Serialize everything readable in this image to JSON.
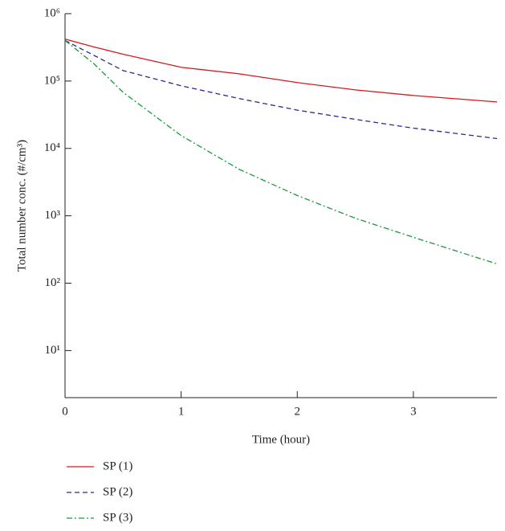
{
  "chart_data": {
    "type": "line",
    "x_label": "Time (hour)",
    "y_label": "Total number conc. (#/cm³)",
    "xlim": [
      0,
      3.72
    ],
    "xticks": [
      0,
      1,
      2,
      3
    ],
    "ylim": [
      2,
      1000000
    ],
    "log_y": true,
    "yticks": [
      {
        "value": 10,
        "label": "10¹"
      },
      {
        "value": 100,
        "label": "10²"
      },
      {
        "value": 1000,
        "label": "10³"
      },
      {
        "value": 10000,
        "label": "10⁴"
      },
      {
        "value": 100000,
        "label": "10⁵"
      },
      {
        "value": 1000000,
        "label": "10⁶"
      }
    ],
    "x": [
      0,
      0.25,
      0.5,
      1,
      1.5,
      2,
      2.5,
      3,
      3.72
    ],
    "series": [
      {
        "name": "SP (1)",
        "color": "#d7191c",
        "dash": "none",
        "values": [
          420000,
          320000,
          250000,
          160000,
          128000,
          95000,
          74000,
          61000,
          49000
        ]
      },
      {
        "name": "SP (2)",
        "color": "#2b2b8a",
        "dash": "6,4",
        "values": [
          400000,
          240000,
          143000,
          85000,
          55000,
          37000,
          27000,
          20000,
          14000
        ]
      },
      {
        "name": "SP (3)",
        "color": "#1a9a3a",
        "dash": "7,3,2,3",
        "values": [
          400000,
          180000,
          68000,
          15500,
          4900,
          2000,
          920,
          480,
          193
        ]
      }
    ]
  }
}
